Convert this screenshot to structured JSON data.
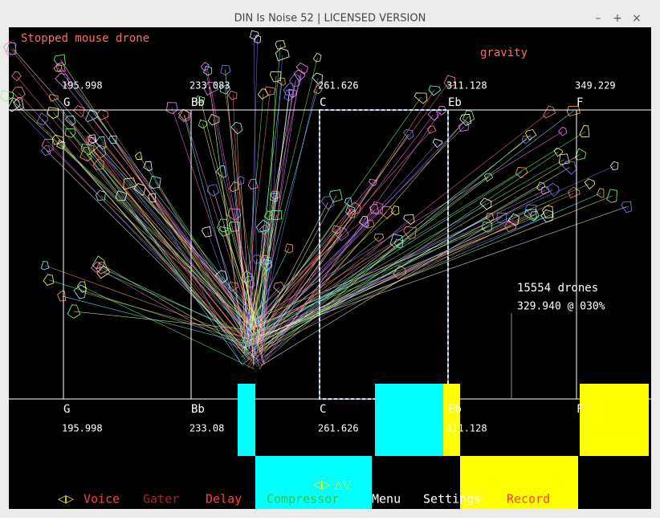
{
  "window": {
    "title": "DIN Is Noise 52 | LICENSED VERSION",
    "buttons": [
      "–",
      "+",
      "×"
    ]
  },
  "status": {
    "mode": "Stopped mouse drone",
    "gravity": "gravity"
  },
  "top_notes": [
    {
      "name": "G",
      "frequency": "195.998"
    },
    {
      "name": "Bb",
      "frequency": "233.083"
    },
    {
      "name": "C",
      "frequency": "261.626"
    },
    {
      "name": "Eb",
      "frequency": "311.128"
    },
    {
      "name": "F",
      "frequency": "349.229"
    }
  ],
  "bottom_notes": [
    {
      "name": "G",
      "frequency": "195.998"
    },
    {
      "name": "Bb",
      "frequency": "233.08"
    },
    {
      "name": "C",
      "frequency": "261.626"
    },
    {
      "name": "Eb",
      "frequency": "311.128"
    },
    {
      "name": "F",
      "frequency": ""
    }
  ],
  "drones": {
    "count": "15554 drones",
    "info": "329.940 @ 030%"
  },
  "menu": [
    "Voice",
    "Gater",
    "Delay",
    "Compressor",
    "Menu",
    "Settings",
    "Record"
  ]
}
